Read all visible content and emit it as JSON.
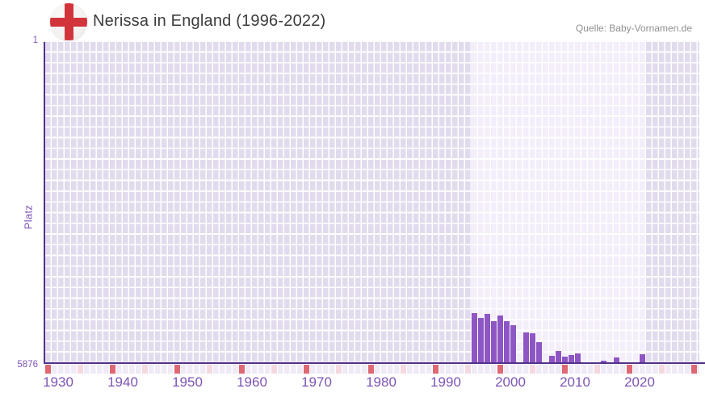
{
  "header": {
    "title": "Nerissa in England (1996-2022)",
    "source": "Quelle: Baby-Vornamen.de",
    "flag_icon": "england-flag-icon"
  },
  "axes": {
    "y_label": "Platz",
    "y_top_tick": "1",
    "y_bottom_tick": "5876",
    "x_tick_labels": [
      "1930",
      "1940",
      "1950",
      "1960",
      "1970",
      "1980",
      "1990",
      "2000",
      "2010",
      "2020"
    ]
  },
  "colors": {
    "bar": "#8e56c4",
    "axis-line": "#53318c",
    "tick-label": "#7d54b5",
    "grid-cell": "#e1dbed",
    "grid-cell-highlight": "#f3eefa",
    "tick-row-cell": "#efeaf6",
    "decade-tick": "#de6873",
    "half-decade-tick": "#f5d9e1",
    "title-text": "#3c3c3c",
    "source-text": "#909090",
    "flag-red": "#d2343c",
    "flag-bg": "#f4f2f0"
  },
  "chart_data": {
    "type": "bar",
    "title": "Nerissa in England (1996-2022)",
    "xlabel": "",
    "ylabel": "Platz",
    "y_axis_inverted": true,
    "ylim": [
      1,
      5876
    ],
    "x_axis_years_range": [
      1930,
      2030
    ],
    "grid": true,
    "legend": false,
    "highlight_band_years": [
      1996,
      2022
    ],
    "decade_tick_years": [
      1930,
      1940,
      1950,
      1960,
      1970,
      1980,
      1990,
      2000,
      2010,
      2020,
      2030
    ],
    "half_decade_tick_years": [
      1935,
      1945,
      1955,
      1965,
      1975,
      1985,
      1995,
      2005,
      2015,
      2025
    ],
    "categories": [
      1996,
      1997,
      1998,
      1999,
      2000,
      2001,
      2002,
      2003,
      2004,
      2005,
      2006,
      2007,
      2008,
      2009,
      2010,
      2011,
      2012,
      2013,
      2014,
      2015,
      2016,
      2017,
      2018,
      2019,
      2020,
      2021,
      2022
    ],
    "values": [
      4965,
      5053,
      4980,
      5112,
      5009,
      5112,
      5186,
      null,
      5318,
      5333,
      5494,
      null,
      5744,
      5656,
      5758,
      5729,
      5700,
      null,
      null,
      null,
      5832,
      null,
      5773,
      null,
      null,
      null,
      5715
    ]
  }
}
